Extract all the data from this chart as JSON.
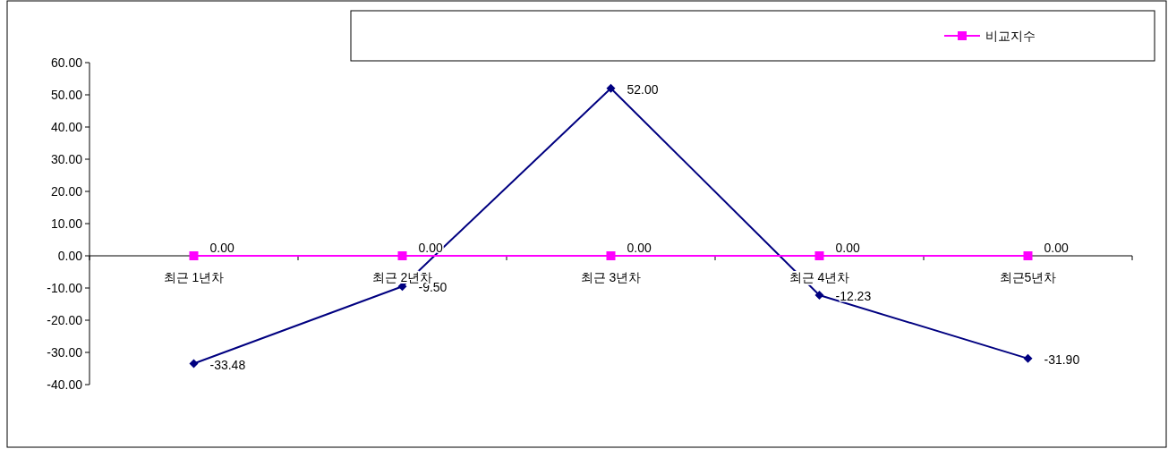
{
  "chart_data": {
    "type": "line",
    "categories": [
      "최근 1년차",
      "최근 2년차",
      "최근 3년차",
      "최근 4년차",
      "최근5년차"
    ],
    "series": [
      {
        "color": "#000080",
        "marker": "diamond",
        "values": [
          -33.48,
          -9.5,
          52,
          -12.23,
          -31.9
        ],
        "value_labels": [
          "-33.48",
          "-9.50",
          "52.00",
          "-12.23",
          "-31.90"
        ]
      },
      {
        "name": "비교지수",
        "color": "#ff00ff",
        "marker": "square",
        "values": [
          0,
          0,
          0,
          0,
          0
        ],
        "value_labels": [
          "0.00",
          "0.00",
          "0.00",
          "0.00",
          "0.00"
        ]
      }
    ],
    "ylim": [
      -40,
      60
    ],
    "yticks": [
      {
        "value": -40,
        "label": "-40.00"
      },
      {
        "value": -30,
        "label": "-30.00"
      },
      {
        "value": -20,
        "label": "-20.00"
      },
      {
        "value": -10,
        "label": "-10.00"
      },
      {
        "value": 0,
        "label": "0.00"
      },
      {
        "value": 10,
        "label": "10.00"
      },
      {
        "value": 20,
        "label": "20.00"
      },
      {
        "value": 30,
        "label": "30.00"
      },
      {
        "value": 40,
        "label": "40.00"
      },
      {
        "value": 50,
        "label": "50.00"
      },
      {
        "value": 60,
        "label": "60.00"
      }
    ],
    "grid": false,
    "legend": "top right"
  }
}
